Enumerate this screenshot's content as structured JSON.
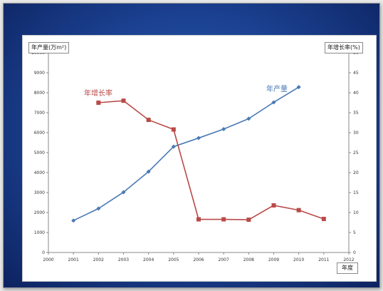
{
  "chart_data": {
    "type": "line",
    "x": [
      2001,
      2002,
      2003,
      2004,
      2005,
      2006,
      2007,
      2008,
      2009,
      2010,
      2011
    ],
    "x_ticks": [
      "2000",
      "2001",
      "2002",
      "2003",
      "2004",
      "2005",
      "2006",
      "2007",
      "2008",
      "2009",
      "2010",
      "2011",
      "2012"
    ],
    "xlim": [
      2000,
      2012
    ],
    "xlabel": "年度",
    "ylabel_left": "年产量(万m²)",
    "ylabel_right": "年增长率(%)",
    "ylim_left": [
      0,
      10000
    ],
    "ylim_right": [
      0,
      50
    ],
    "y_ticks_left": [
      "0",
      "1000",
      "2000",
      "3000",
      "4000",
      "5000",
      "6000",
      "7000",
      "8000",
      "9000",
      "10000"
    ],
    "y_ticks_right": [
      "0",
      "5",
      "10",
      "15",
      "20",
      "25",
      "30",
      "35",
      "40",
      "45",
      "50"
    ],
    "grid": false,
    "series": [
      {
        "name": "年产量",
        "axis": "left",
        "color": "#4a7ab5",
        "marker": "diamond",
        "x": [
          2001,
          2002,
          2003,
          2004,
          2005,
          2006,
          2007,
          2008,
          2009,
          2010
        ],
        "values": [
          1600,
          2200,
          3020,
          4050,
          5300,
          5730,
          6180,
          6700,
          7520,
          8280
        ]
      },
      {
        "name": "年增长率",
        "axis": "right",
        "color": "#b94a48",
        "marker": "square",
        "x": [
          2002,
          2003,
          2004,
          2005,
          2006,
          2007,
          2008,
          2009,
          2010,
          2011
        ],
        "values": [
          37.5,
          38,
          33.2,
          30.8,
          8.3,
          8.3,
          8.2,
          11.8,
          10.6,
          8.4
        ]
      }
    ]
  }
}
